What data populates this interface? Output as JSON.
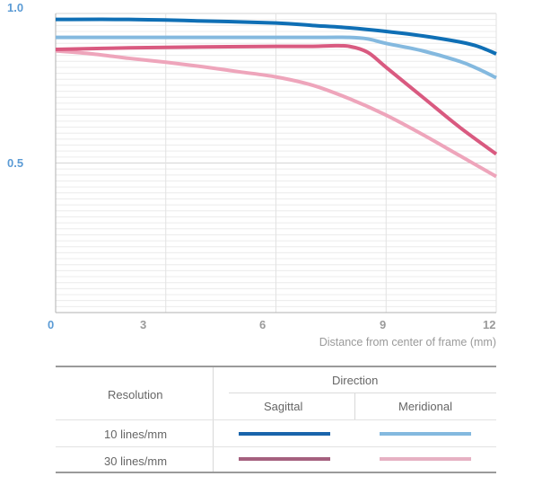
{
  "chart_data": {
    "type": "line",
    "xlabel": "Distance from center of frame (mm)",
    "xlim": [
      0,
      12
    ],
    "ylim": [
      0,
      1.0
    ],
    "x_ticks": [
      "0",
      "3",
      "6",
      "9",
      "12"
    ],
    "y_ticks": [
      "0.5",
      "1.0"
    ],
    "grid": "horizontal",
    "series": [
      {
        "resolution": "10 lines/mm",
        "direction": "Sagittal",
        "color": "#0f6fb5",
        "x": [
          0,
          2,
          4,
          6,
          7,
          8,
          9,
          10,
          11,
          11.5,
          12
        ],
        "y": [
          0.98,
          0.98,
          0.975,
          0.968,
          0.96,
          0.952,
          0.94,
          0.925,
          0.905,
          0.89,
          0.865
        ]
      },
      {
        "resolution": "10 lines/mm",
        "direction": "Meridional",
        "color": "#84b9df",
        "x": [
          0,
          2,
          4,
          6,
          7,
          8,
          8.5,
          9,
          10,
          11,
          11.5,
          12
        ],
        "y": [
          0.92,
          0.92,
          0.92,
          0.92,
          0.92,
          0.92,
          0.915,
          0.9,
          0.875,
          0.84,
          0.815,
          0.785
        ]
      },
      {
        "resolution": "30 lines/mm",
        "direction": "Sagittal",
        "color": "#d95a80",
        "x": [
          0,
          2,
          4,
          6,
          7,
          7.5,
          8,
          8.5,
          9,
          10,
          11,
          12
        ],
        "y": [
          0.88,
          0.885,
          0.888,
          0.89,
          0.89,
          0.892,
          0.89,
          0.87,
          0.82,
          0.72,
          0.62,
          0.53
        ]
      },
      {
        "resolution": "30 lines/mm",
        "direction": "Meridional",
        "color": "#eea5bb",
        "x": [
          0,
          1,
          2,
          3,
          4,
          5,
          6,
          7,
          8,
          9,
          10,
          11,
          12
        ],
        "y": [
          0.875,
          0.865,
          0.85,
          0.837,
          0.822,
          0.805,
          0.788,
          0.76,
          0.715,
          0.66,
          0.595,
          0.525,
          0.455
        ]
      }
    ]
  },
  "legend": {
    "resolution_header": "Resolution",
    "direction_header": "Direction",
    "sagittal_label": "Sagittal",
    "meridional_label": "Meridional",
    "rows": [
      {
        "label": "10 lines/mm",
        "sagittal_color": "#1a64ab",
        "meridional_color": "#84b9df"
      },
      {
        "label": "30 lines/mm",
        "sagittal_color": "#a5607e",
        "meridional_color": "#e6b1c3"
      }
    ]
  },
  "colors": {
    "axis_label": "#5b9bd5",
    "tick_gray": "#9a9a9a",
    "grid": "#e4e4e4"
  }
}
